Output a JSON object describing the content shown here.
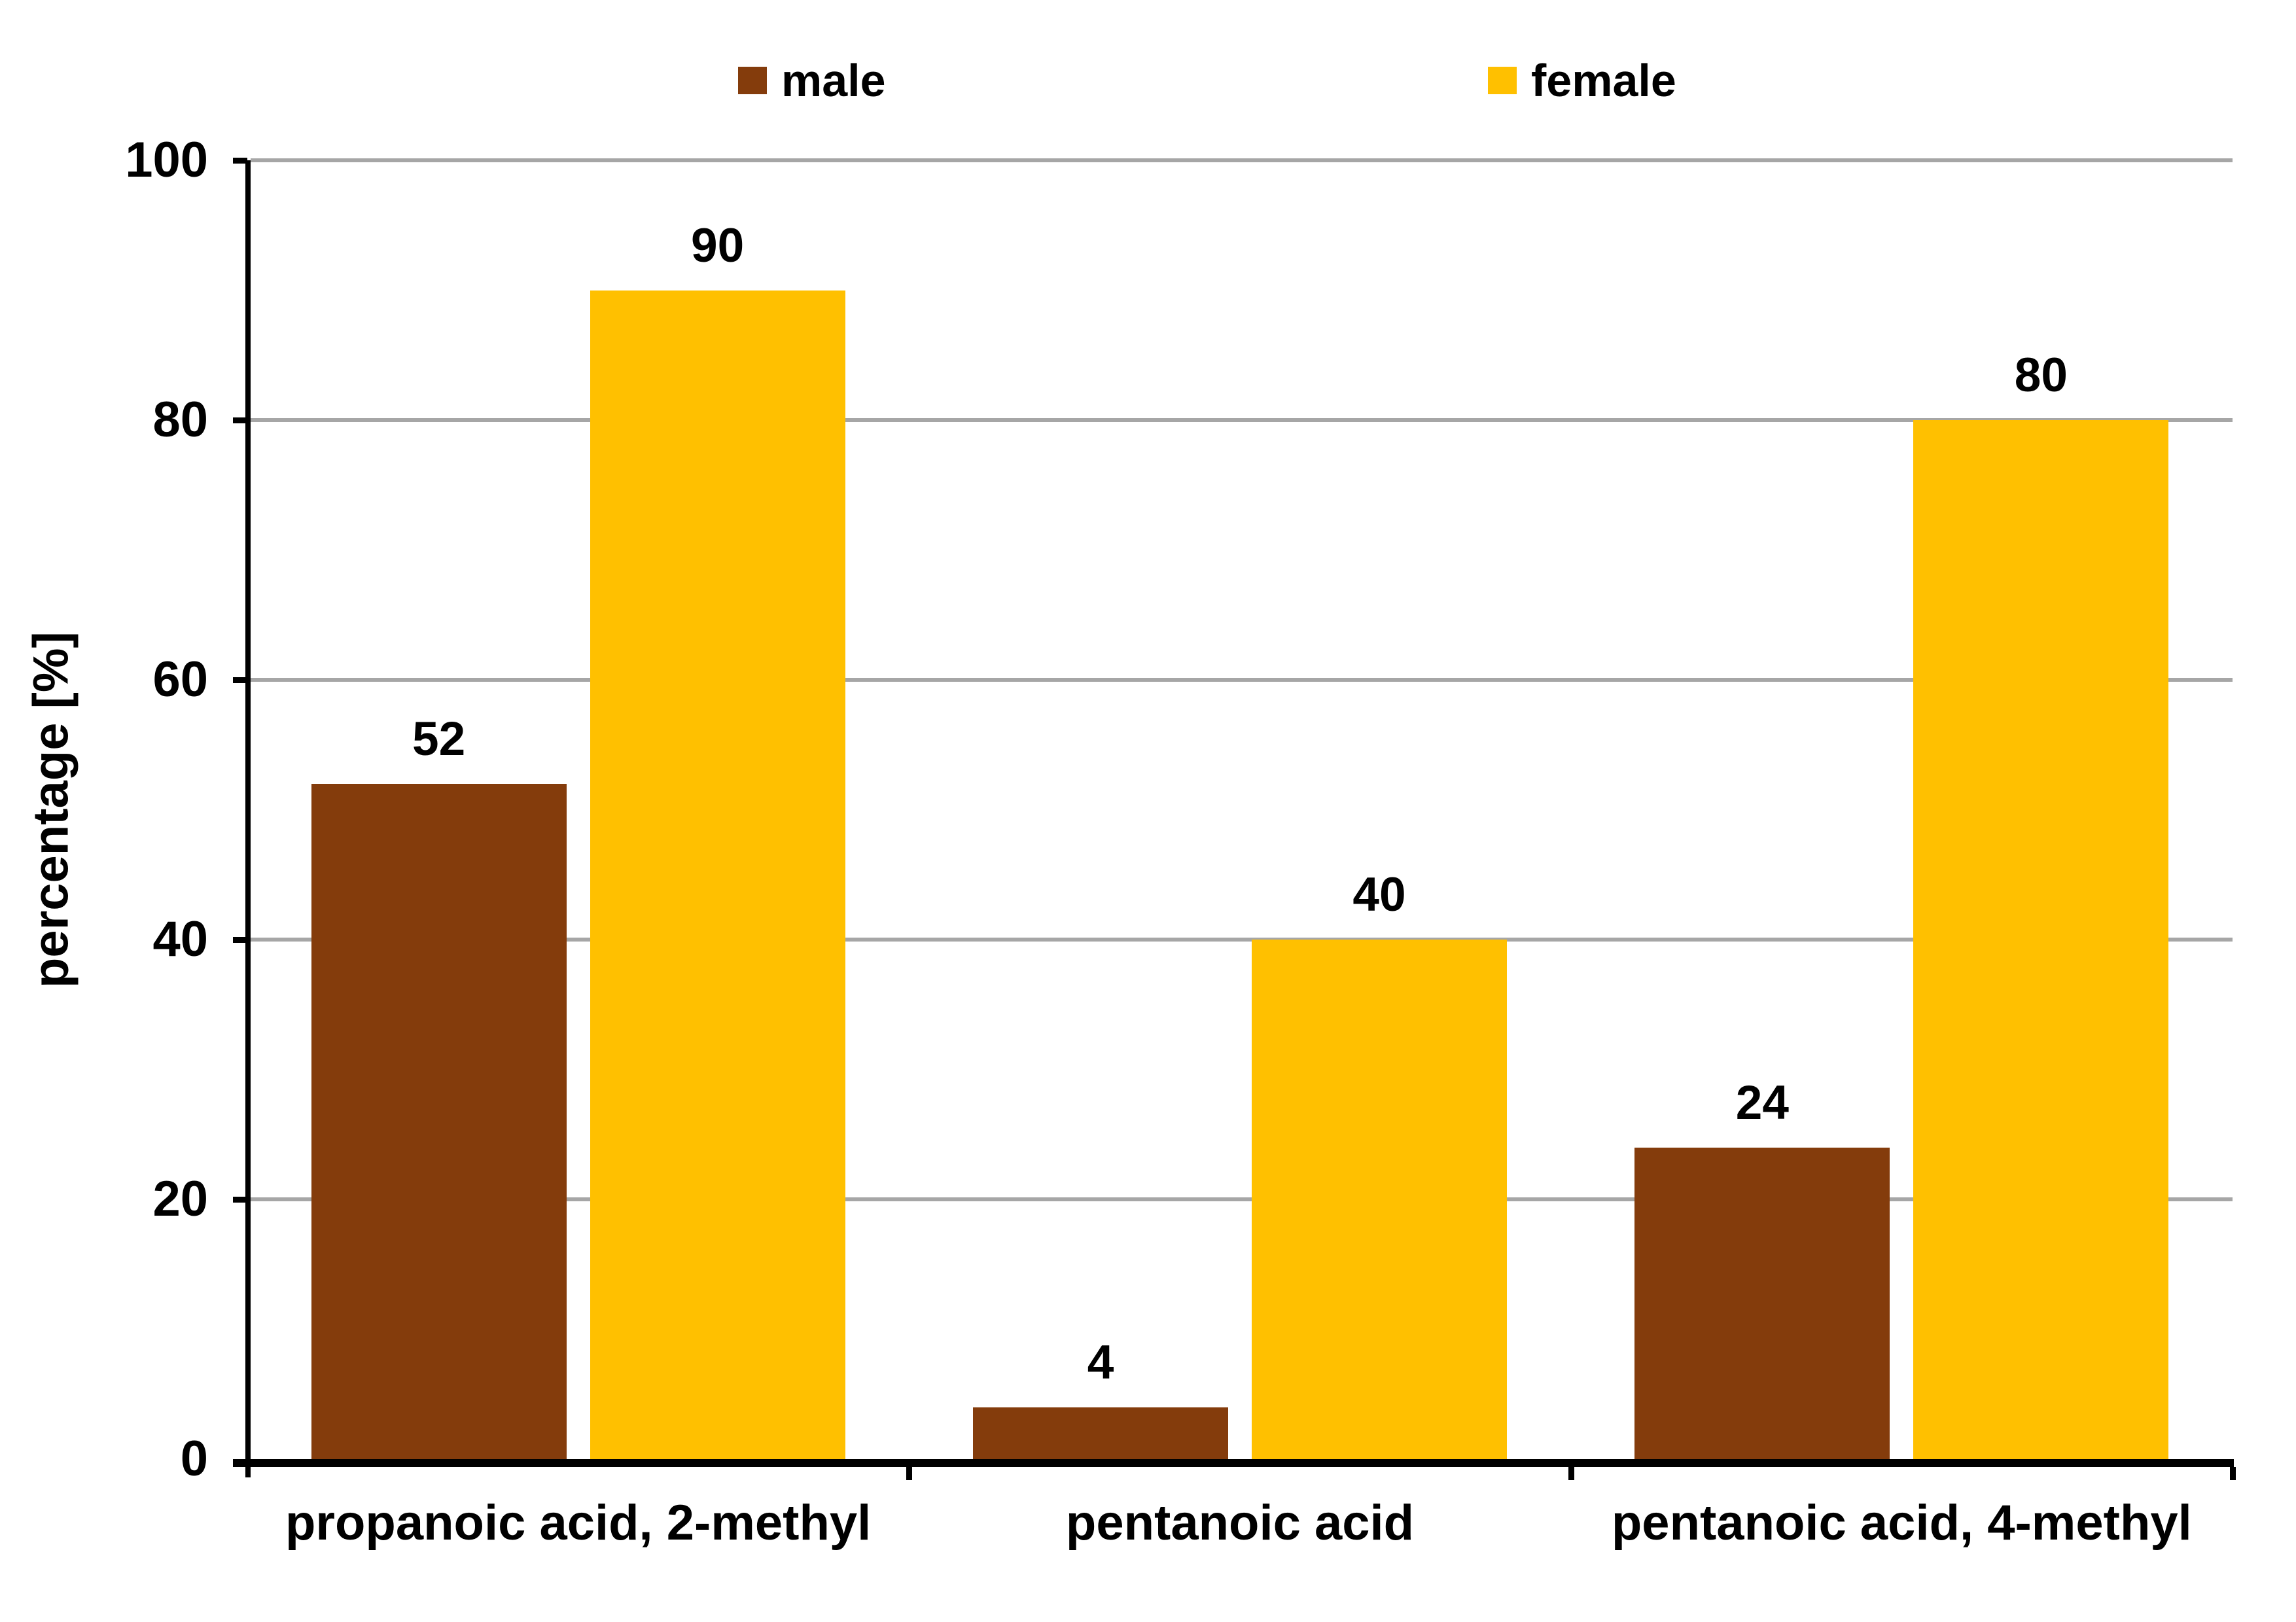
{
  "chart_data": {
    "type": "bar",
    "categories": [
      "propanoic acid, 2-methyl",
      "pentanoic acid",
      "pentanoic acid, 4-methyl"
    ],
    "series": [
      {
        "name": "male",
        "color": "#843C0C",
        "values": [
          52,
          4,
          24
        ]
      },
      {
        "name": "female",
        "color": "#FFC000",
        "values": [
          90,
          40,
          80
        ]
      }
    ],
    "title": "",
    "xlabel": "",
    "ylabel": "percentage [%]",
    "ylim": [
      0,
      100
    ],
    "yticks": [
      0,
      20,
      40,
      60,
      80,
      100
    ],
    "grid": true,
    "gridline_color": "#A6A6A6",
    "axis_color": "#000000",
    "text_color": "#000000",
    "background_color": "#FFFFFF",
    "legend_position": "top",
    "data_labels": true
  }
}
